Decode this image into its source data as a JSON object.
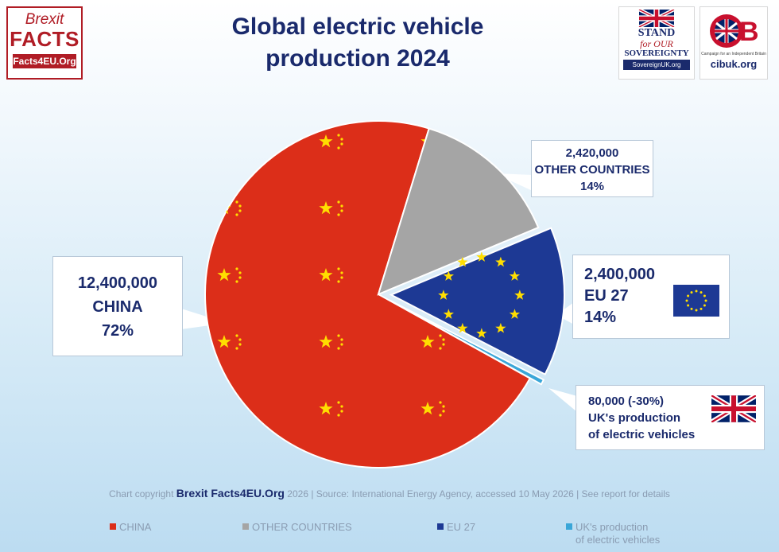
{
  "header": {
    "title_line1": "Global electric vehicle",
    "title_line2": "production 2024"
  },
  "logos": {
    "brexit_facts": {
      "line1": "Brexit",
      "line2": "FACTS",
      "url": "Facts4EU.Org"
    },
    "stand": {
      "line1": "STAND",
      "line2": "for OUR",
      "line3": "SOVEREIGNTY",
      "url": "SovereignUK.org"
    },
    "cib": {
      "mark": "CIB",
      "tagline": "Campaign for an Independent Britain",
      "url": "cibuk.org"
    }
  },
  "callouts": {
    "china": {
      "value": "12,400,000",
      "name": "CHINA",
      "pct": "72%"
    },
    "other": {
      "value": "2,420,000",
      "name": "OTHER COUNTRIES",
      "pct": "14%"
    },
    "eu": {
      "value": "2,400,000",
      "name": "EU 27",
      "pct": "14%"
    },
    "uk": {
      "value": "80,000 (-30%)",
      "name_line1": "UK's production",
      "name_line2": "of electric vehicles"
    }
  },
  "copyright": {
    "prefix": "Chart copyright",
    "brand": "Brexit Facts4EU.Org",
    "suffix": "2026 | Source: International Energy Agency, accessed 10 May 2026 | See report for details"
  },
  "legend": [
    {
      "label": "CHINA",
      "color": "#dc2e19"
    },
    {
      "label": "OTHER COUNTRIES",
      "color": "#a5a5a5"
    },
    {
      "label": "EU 27",
      "color": "#1d3994"
    },
    {
      "label": "UK's production",
      "label2": "of electric vehicles",
      "color": "#3aa6d8"
    }
  ],
  "chart_data": {
    "type": "pie",
    "title": "Global electric vehicle production 2024",
    "categories": [
      "CHINA",
      "OTHER COUNTRIES",
      "EU 27",
      "UK's production of electric vehicles"
    ],
    "values": [
      12400000,
      2420000,
      2400000,
      80000
    ],
    "percent_labels": [
      "72%",
      "14%",
      "14%",
      ""
    ],
    "exploded": [
      false,
      false,
      true,
      true
    ],
    "colors": [
      "#dc2e19",
      "#a5a5a5",
      "#1d3994",
      "#3aa6d8"
    ],
    "legend_position": "bottom"
  }
}
